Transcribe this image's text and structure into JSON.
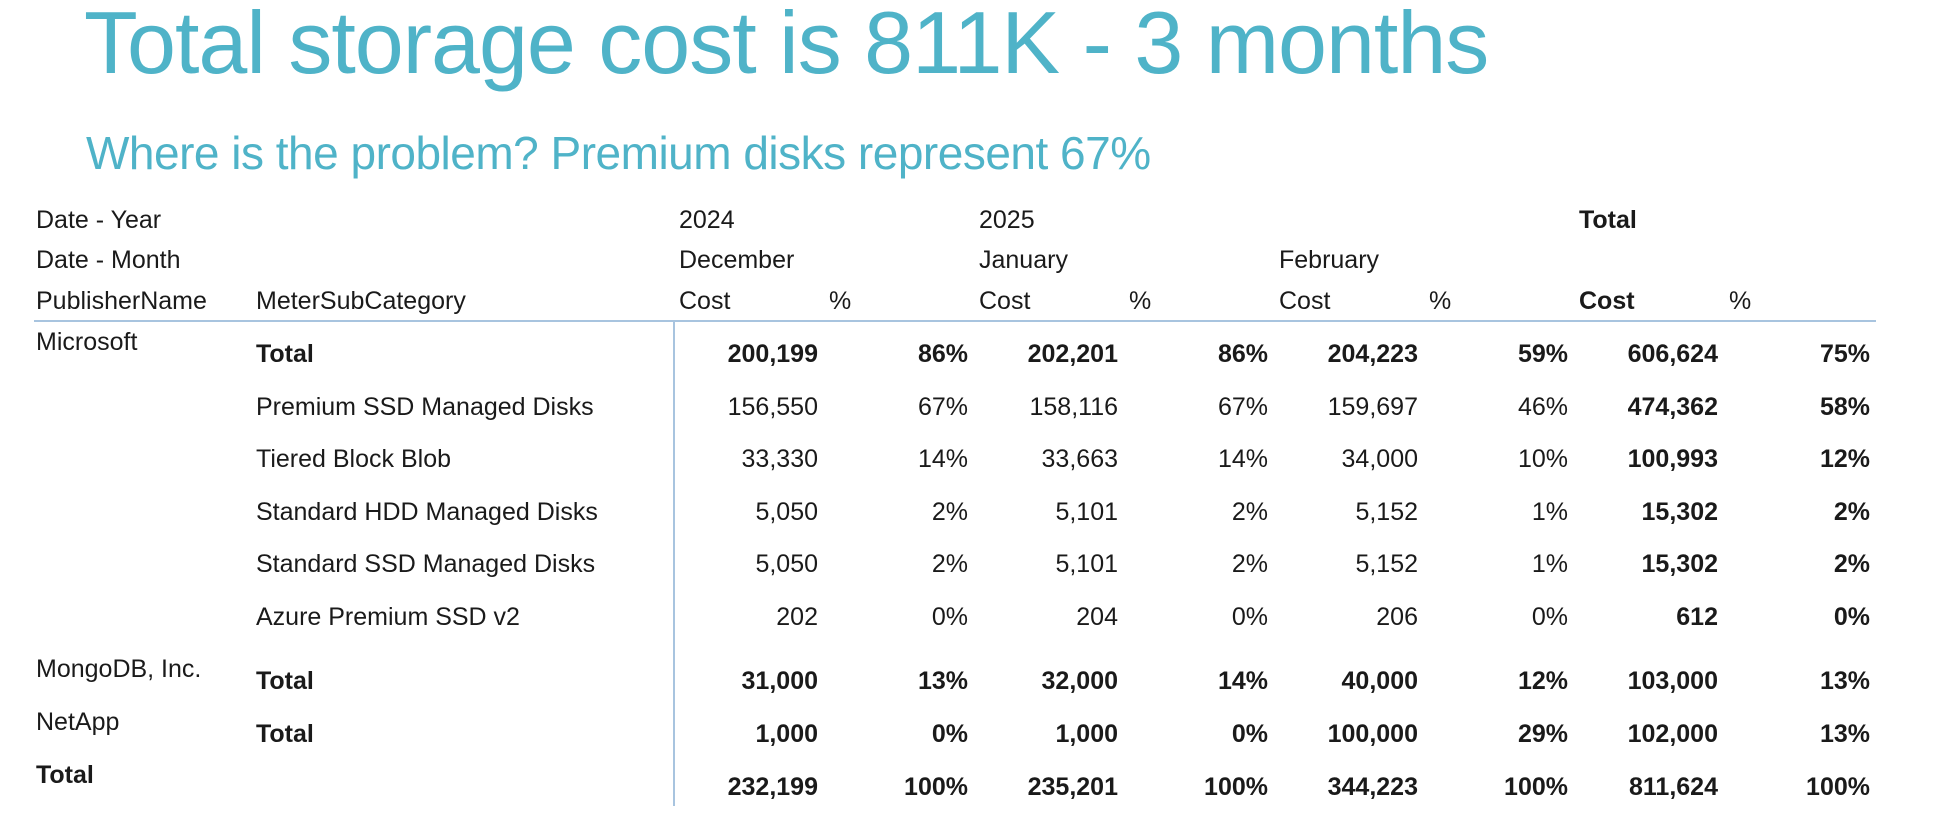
{
  "title": "Total storage cost is 811K - 3 months",
  "subtitle": "Where is the problem?  Premium disks represent 67%",
  "header": {
    "date_year": "Date - Year",
    "date_month": "Date - Month",
    "publisher": "PublisherName",
    "meter": "MeterSubCategory",
    "year_2024": "2024",
    "year_2025": "2025",
    "total": "Total",
    "months": [
      "December",
      "January",
      "February"
    ],
    "cost": "Cost",
    "pct": "%"
  },
  "rows": [
    {
      "publisher": "Microsoft",
      "meter": "Total",
      "bold": true,
      "dec_cost": "200,199",
      "dec_pct": "86%",
      "jan_cost": "202,201",
      "jan_pct": "86%",
      "feb_cost": "204,223",
      "feb_pct": "59%",
      "tot_cost": "606,624",
      "tot_pct": "75%"
    },
    {
      "publisher": "",
      "meter": "Premium SSD Managed Disks",
      "bold": false,
      "dec_cost": "156,550",
      "dec_pct": "67%",
      "jan_cost": "158,116",
      "jan_pct": "67%",
      "feb_cost": "159,697",
      "feb_pct": "46%",
      "tot_cost": "474,362",
      "tot_pct": "58%"
    },
    {
      "publisher": "",
      "meter": "Tiered Block Blob",
      "bold": false,
      "dec_cost": "33,330",
      "dec_pct": "14%",
      "jan_cost": "33,663",
      "jan_pct": "14%",
      "feb_cost": "34,000",
      "feb_pct": "10%",
      "tot_cost": "100,993",
      "tot_pct": "12%"
    },
    {
      "publisher": "",
      "meter": "Standard HDD Managed Disks",
      "bold": false,
      "dec_cost": "5,050",
      "dec_pct": "2%",
      "jan_cost": "5,101",
      "jan_pct": "2%",
      "feb_cost": "5,152",
      "feb_pct": "1%",
      "tot_cost": "15,302",
      "tot_pct": "2%"
    },
    {
      "publisher": "",
      "meter": "Standard SSD Managed Disks",
      "bold": false,
      "dec_cost": "5,050",
      "dec_pct": "2%",
      "jan_cost": "5,101",
      "jan_pct": "2%",
      "feb_cost": "5,152",
      "feb_pct": "1%",
      "tot_cost": "15,302",
      "tot_pct": "2%"
    },
    {
      "publisher": "",
      "meter": "Azure Premium SSD v2",
      "bold": false,
      "dec_cost": "202",
      "dec_pct": "0%",
      "jan_cost": "204",
      "jan_pct": "0%",
      "feb_cost": "206",
      "feb_pct": "0%",
      "tot_cost": "612",
      "tot_pct": "0%"
    },
    {
      "publisher": "MongoDB, Inc.",
      "meter": "Total",
      "bold": true,
      "dec_cost": "31,000",
      "dec_pct": "13%",
      "jan_cost": "32,000",
      "jan_pct": "14%",
      "feb_cost": "40,000",
      "feb_pct": "12%",
      "tot_cost": "103,000",
      "tot_pct": "13%"
    },
    {
      "publisher": "NetApp",
      "meter": "Total",
      "bold": true,
      "dec_cost": "1,000",
      "dec_pct": "0%",
      "jan_cost": "1,000",
      "jan_pct": "0%",
      "feb_cost": "100,000",
      "feb_pct": "29%",
      "tot_cost": "102,000",
      "tot_pct": "13%"
    },
    {
      "publisher": "Total",
      "meter": "",
      "bold": true,
      "dec_cost": "232,199",
      "dec_pct": "100%",
      "jan_cost": "235,201",
      "jan_pct": "100%",
      "feb_cost": "344,223",
      "feb_pct": "100%",
      "tot_cost": "811,624",
      "tot_pct": "100%"
    }
  ]
}
